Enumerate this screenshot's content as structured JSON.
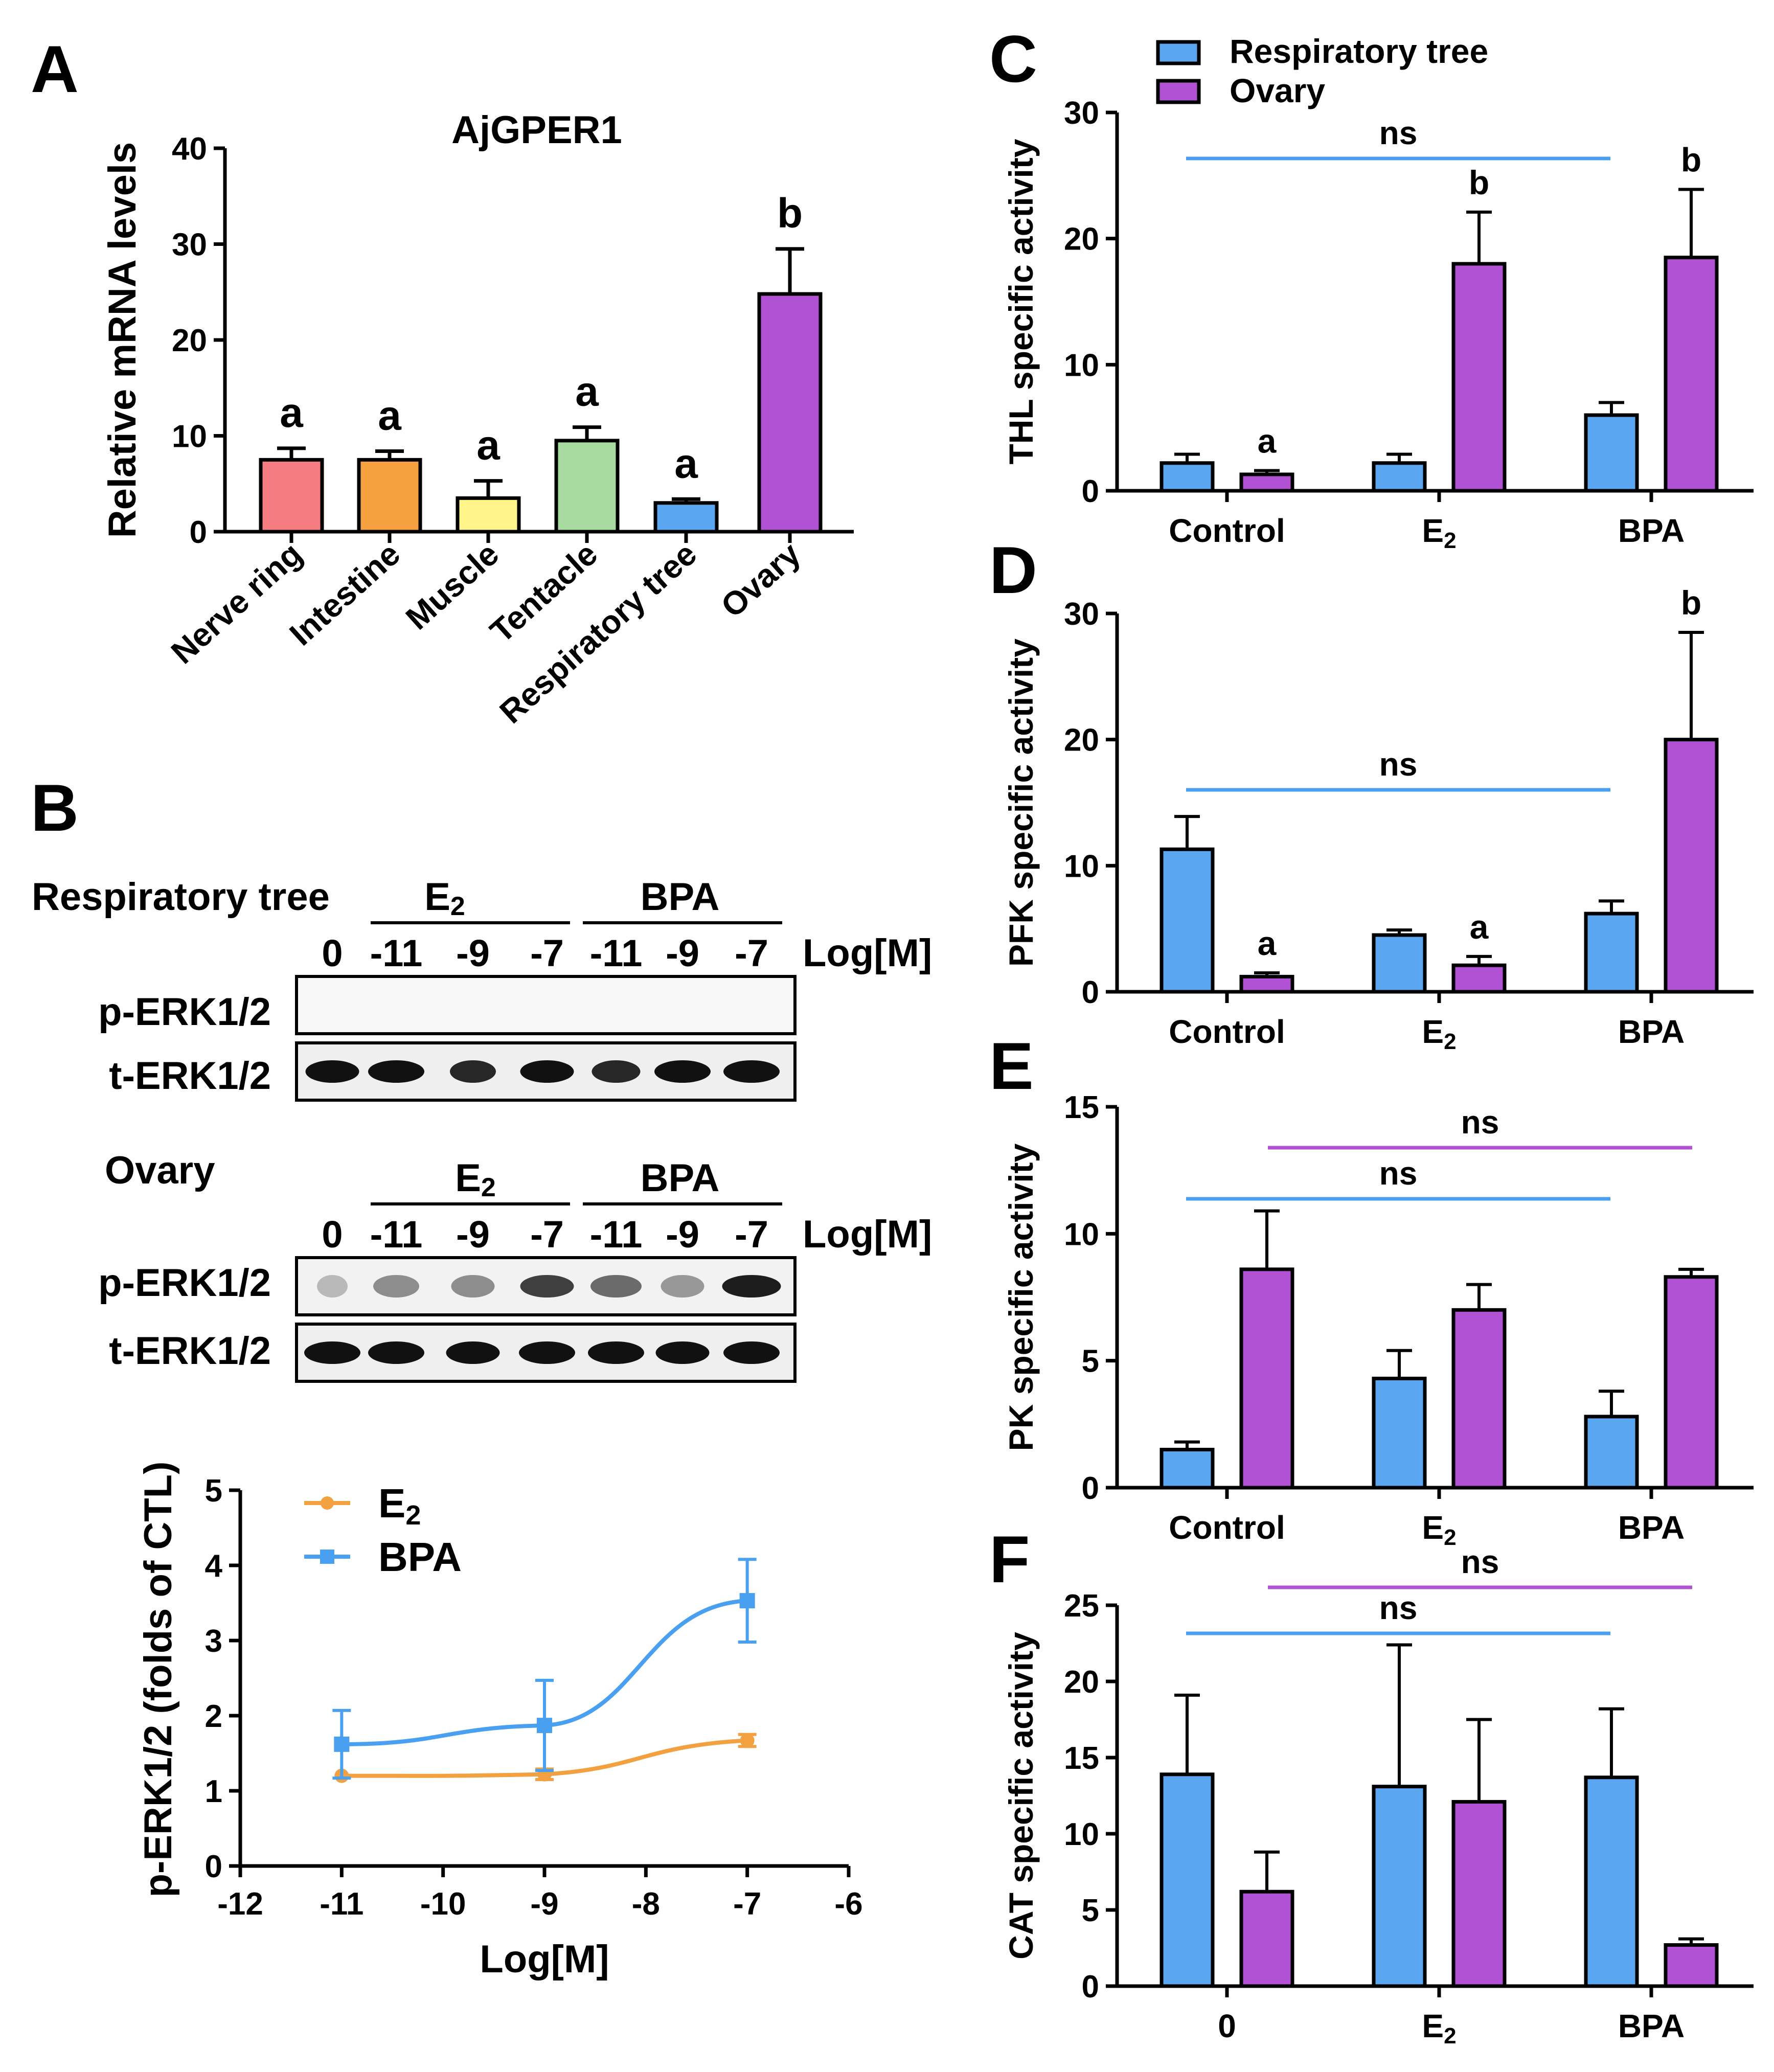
{
  "colors": {
    "resp": "#5aa6f0",
    "ovary": "#b151d4",
    "line_resp": "#4aa0f0",
    "line_ovary": "#b151d4",
    "e2_line": "#f2a040",
    "bpa_line": "#4aa0f0",
    "nerve": "#f57c80",
    "intestine": "#f7a040",
    "muscle": "#fff58a",
    "tentacle": "#a8dba0",
    "resp_a": "#5aa6f0",
    "ovary_a": "#b151d4"
  },
  "panels": {
    "A": "A",
    "B": "B",
    "C": "C",
    "D": "D",
    "E": "E",
    "F": "F"
  },
  "legend": {
    "resp": "Respiratory tree",
    "ovary": "Ovary"
  },
  "blot": {
    "row1_title": "Respiratory tree",
    "row2_title": "Ovary",
    "e2": "E",
    "e2_sub": "2",
    "bpa": "BPA",
    "lanes": [
      "0",
      "-11",
      "-9",
      "-7",
      "-11",
      "-9",
      "-7"
    ],
    "logm": "Log[M]",
    "p_erk": "p-ERK1/2",
    "t_erk": "t-ERK1/2"
  },
  "chart_data": [
    {
      "id": "A",
      "type": "bar",
      "title": "AjGPER1",
      "ylabel": "Relative mRNA levels",
      "ylim": [
        0,
        40
      ],
      "yticks": [
        0,
        10,
        20,
        30,
        40
      ],
      "categories": [
        "Nerve ring",
        "Intestine",
        "Muscle",
        "Tentacle",
        "Respiratory tree",
        "Ovary"
      ],
      "values": [
        7.5,
        7.5,
        3.5,
        9.5,
        3.0,
        24.8
      ],
      "errors": [
        1.2,
        0.9,
        1.8,
        1.4,
        0.4,
        4.7
      ],
      "letters": [
        "a",
        "a",
        "a",
        "a",
        "a",
        "b"
      ]
    },
    {
      "id": "B",
      "type": "line",
      "xlabel": "Log[M]",
      "ylabel": "p-ERK1/2 (folds of CTL)",
      "xlim": [
        -12,
        -6
      ],
      "xticks": [
        -12,
        -11,
        -10,
        -9,
        -8,
        -7,
        -6
      ],
      "ylim": [
        0,
        5
      ],
      "yticks": [
        0,
        1,
        2,
        3,
        4,
        5
      ],
      "series": [
        {
          "name": "E",
          "name_sub": "2",
          "x": [
            -11,
            -9,
            -7
          ],
          "y": [
            1.2,
            1.22,
            1.67
          ],
          "err": [
            0.0,
            0.07,
            0.08
          ]
        },
        {
          "name": "BPA",
          "x": [
            -11,
            -9,
            -7
          ],
          "y": [
            1.62,
            1.87,
            3.53
          ],
          "err": [
            0.45,
            0.6,
            0.55
          ]
        }
      ]
    },
    {
      "id": "C",
      "type": "bar",
      "ylabel": "THL specific activity",
      "ylim": [
        0,
        30
      ],
      "yticks": [
        0,
        10,
        20,
        30
      ],
      "groups": [
        "Control",
        "E",
        "BPA"
      ],
      "group_subs": [
        "",
        "2",
        ""
      ],
      "series": [
        {
          "name": "Respiratory tree",
          "values": [
            2.2,
            2.2,
            6.0
          ],
          "errors": [
            0.7,
            0.7,
            1.0
          ]
        },
        {
          "name": "Ovary",
          "values": [
            1.3,
            18.0,
            18.5
          ],
          "errors": [
            0.3,
            4.1,
            5.4
          ]
        }
      ],
      "letters": [
        [
          "",
          "a"
        ],
        [
          "",
          "b"
        ],
        [
          "",
          "b"
        ]
      ],
      "ns_lines": [
        {
          "label": "ns",
          "color": "resp",
          "from": 0,
          "to": 2
        }
      ]
    },
    {
      "id": "D",
      "type": "bar",
      "ylabel": "PFK specific activity",
      "ylim": [
        0,
        30
      ],
      "yticks": [
        0,
        10,
        20,
        30
      ],
      "groups": [
        "Control",
        "E",
        "BPA"
      ],
      "group_subs": [
        "",
        "2",
        ""
      ],
      "series": [
        {
          "name": "Respiratory tree",
          "values": [
            11.3,
            4.5,
            6.2
          ],
          "errors": [
            2.6,
            0.4,
            1.0
          ]
        },
        {
          "name": "Ovary",
          "values": [
            1.2,
            2.1,
            20.0
          ],
          "errors": [
            0.3,
            0.7,
            8.5
          ]
        }
      ],
      "letters": [
        [
          "",
          "a"
        ],
        [
          "",
          "a"
        ],
        [
          "",
          "b"
        ]
      ],
      "ns_lines": [
        {
          "label": "ns",
          "color": "resp",
          "from": 0,
          "to": 2
        }
      ]
    },
    {
      "id": "E",
      "type": "bar",
      "ylabel": "PK specific activity",
      "ylim": [
        0,
        15
      ],
      "yticks": [
        0,
        5,
        10,
        15
      ],
      "groups": [
        "Control",
        "E",
        "BPA"
      ],
      "group_subs": [
        "",
        "2",
        ""
      ],
      "series": [
        {
          "name": "Respiratory tree",
          "values": [
            1.5,
            4.3,
            2.8
          ],
          "errors": [
            0.3,
            1.1,
            1.0
          ]
        },
        {
          "name": "Ovary",
          "values": [
            8.6,
            7.0,
            8.3
          ],
          "errors": [
            2.3,
            1.0,
            0.3
          ]
        }
      ],
      "letters": [
        [
          "",
          ""
        ],
        [
          "",
          ""
        ],
        [
          "",
          ""
        ]
      ],
      "ns_lines": [
        {
          "label": "ns",
          "color": "ovary",
          "from": 0,
          "to": 2
        },
        {
          "label": "ns",
          "color": "resp",
          "from": 0,
          "to": 2
        }
      ]
    },
    {
      "id": "F",
      "type": "bar",
      "ylabel": "CAT specific activity",
      "ylim": [
        0,
        25
      ],
      "yticks": [
        0,
        5,
        10,
        15,
        20,
        25
      ],
      "groups": [
        "0",
        "E",
        "BPA"
      ],
      "group_subs": [
        "",
        "2",
        ""
      ],
      "series": [
        {
          "name": "Respiratory tree",
          "values": [
            13.9,
            13.1,
            13.7
          ],
          "errors": [
            5.2,
            9.3,
            4.5
          ]
        },
        {
          "name": "Ovary",
          "values": [
            6.2,
            12.1,
            2.7
          ],
          "errors": [
            2.6,
            5.4,
            0.4
          ]
        }
      ],
      "letters": [
        [
          "",
          ""
        ],
        [
          "",
          ""
        ],
        [
          "",
          ""
        ]
      ],
      "ns_lines": [
        {
          "label": "ns",
          "color": "ovary",
          "from": 0,
          "to": 2
        },
        {
          "label": "ns",
          "color": "resp",
          "from": 0,
          "to": 2
        }
      ]
    }
  ]
}
